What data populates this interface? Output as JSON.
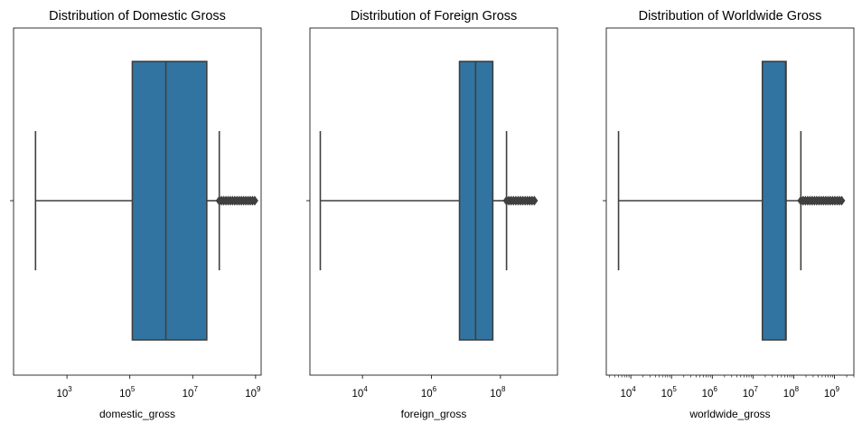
{
  "chart_data": [
    {
      "type": "boxplot",
      "title": "Distribution of Domestic Gross",
      "xlabel": "domestic_gross",
      "xscale": "log",
      "xlim": [
        20,
        1500000000
      ],
      "ticks": [
        {
          "value": 1000,
          "base": "10",
          "exp": "3"
        },
        {
          "value": 100000,
          "base": "10",
          "exp": "5"
        },
        {
          "value": 10000000,
          "base": "10",
          "exp": "7"
        },
        {
          "value": 1000000000,
          "base": "10",
          "exp": "9"
        }
      ],
      "minor_ticks": false,
      "box": {
        "whisker_low": 100,
        "q1": 120000,
        "median": 1400000,
        "q3": 28000000,
        "whisker_high": 70000000
      },
      "outliers": {
        "min": 70000000,
        "max": 937000000
      },
      "color": "#3274a1"
    },
    {
      "type": "boxplot",
      "title": "Distribution of Foreign Gross",
      "xlabel": "foreign_gross",
      "xscale": "log",
      "xlim": [
        300,
        4500000000
      ],
      "ticks": [
        {
          "value": 10000,
          "base": "10",
          "exp": "4"
        },
        {
          "value": 1000000,
          "base": "10",
          "exp": "6"
        },
        {
          "value": 100000000,
          "base": "10",
          "exp": "8"
        }
      ],
      "minor_ticks": false,
      "box": {
        "whisker_low": 600,
        "q1": 6500000,
        "median": 19000000,
        "q3": 60000000,
        "whisker_high": 150000000
      },
      "outliers": {
        "min": 150000000,
        "max": 960000000
      },
      "color": "#3274a1"
    },
    {
      "type": "boxplot",
      "title": "Distribution of Worldwide Gross",
      "xlabel": "worldwide_gross",
      "xscale": "log",
      "xlim": [
        2500,
        3000000000
      ],
      "ticks": [
        {
          "value": 10000,
          "base": "10",
          "exp": "4"
        },
        {
          "value": 100000,
          "base": "10",
          "exp": "5"
        },
        {
          "value": 1000000,
          "base": "10",
          "exp": "6"
        },
        {
          "value": 10000000,
          "base": "10",
          "exp": "7"
        },
        {
          "value": 100000000,
          "base": "10",
          "exp": "8"
        },
        {
          "value": 1000000000,
          "base": "10",
          "exp": "9"
        }
      ],
      "minor_ticks": true,
      "box": {
        "whisker_low": 5000,
        "q1": 17000000,
        "median": 63000000,
        "q3": 65000000,
        "whisker_high": 150000000
      },
      "outliers": {
        "min": 150000000,
        "max": 1500000000
      },
      "color": "#3274a1"
    }
  ]
}
